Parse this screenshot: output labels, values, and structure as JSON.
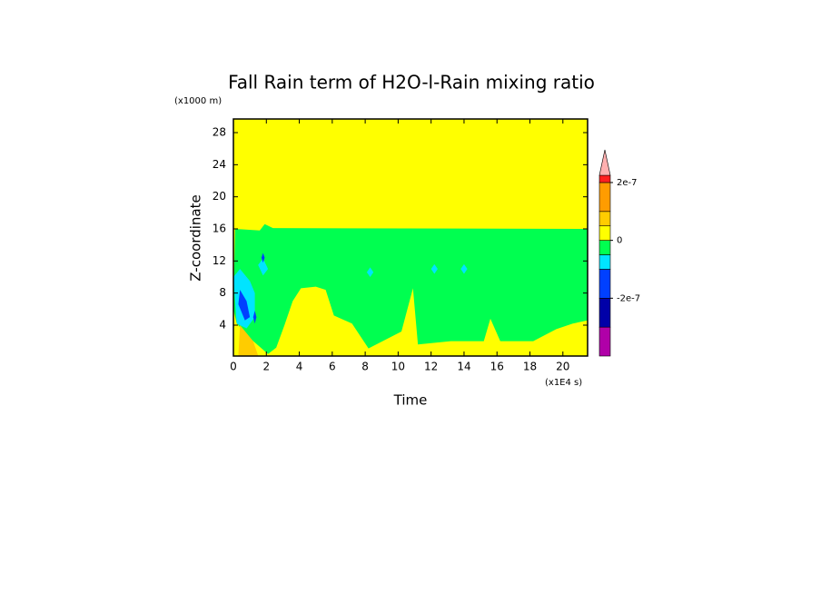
{
  "chart_data": {
    "type": "contour",
    "title": "Fall Rain term of H2O-l-Rain mixing ratio",
    "x_label": "Time",
    "y_label": "Z-coordinate",
    "x_unit": "(x1E4 s)",
    "y_unit": "(x1000 m)",
    "xlim": [
      0,
      21.5
    ],
    "ylim": [
      0.15,
      29.7
    ],
    "xticks": [
      0,
      2,
      4,
      6,
      8,
      10,
      12,
      14,
      16,
      18,
      20
    ],
    "yticks": [
      4,
      8,
      12,
      16,
      20,
      24,
      28
    ],
    "background_level": 5,
    "colorbar": {
      "levels": [
        -4e-07,
        -3e-07,
        -2e-07,
        -1e-07,
        -5e-08,
        0,
        5e-08,
        1e-07,
        2e-07,
        2.25e-07
      ],
      "colors": [
        "#b000a8",
        "#0000a8",
        "#0040ff",
        "#00e4ff",
        "#00ff50",
        "#ffff00",
        "#ffcc00",
        "#ff9c00",
        "#ff2020"
      ],
      "extend_color": "#ffb0b0",
      "ticks": [
        {
          "value": 2e-07,
          "label": "2e-7"
        },
        {
          "value": 0,
          "label": "0"
        },
        {
          "value": -2e-07,
          "label": "-2e-7"
        }
      ]
    },
    "regions": [
      {
        "level": 4,
        "x": [
          0.1,
          1.6,
          1.9,
          2.4,
          21.5,
          21.5,
          20.6,
          19.6,
          18.2,
          16.2,
          15.6,
          15.2,
          13.2,
          11.2,
          10.9,
          10.2,
          8.2,
          7.2,
          6.1,
          5.6,
          5.0,
          4.1,
          3.6,
          3.1,
          2.6,
          2.1,
          1.1,
          0.2,
          0
        ],
        "y": [
          16,
          15.8,
          16.6,
          16.1,
          16,
          4.6,
          4.2,
          3.5,
          2.0,
          2.0,
          4.8,
          2.0,
          2.0,
          1.6,
          8.6,
          3.2,
          1.1,
          4.2,
          5.2,
          8.4,
          8.8,
          8.6,
          7.0,
          4.0,
          1.2,
          0.4,
          2.2,
          4.2,
          6.0
        ]
      },
      {
        "level": 6,
        "x": [
          0.3,
          0.4,
          1.2,
          1.5
        ],
        "y": [
          0.2,
          4.0,
          2.0,
          0.2
        ]
      },
      {
        "level": 3,
        "x": [
          0,
          0.4,
          1.0,
          1.3,
          1.3,
          0.8,
          0.2
        ],
        "y": [
          10.0,
          11.0,
          9.5,
          8.0,
          5.0,
          3.6,
          4.2
        ]
      },
      {
        "level": 3,
        "x": [
          1.5,
          1.8,
          2.1,
          1.8
        ],
        "y": [
          11.5,
          12.3,
          11.0,
          10.2
        ]
      },
      {
        "level": 2,
        "x": [
          0.4,
          0.8,
          1.0,
          0.7,
          0.3
        ],
        "y": [
          8.4,
          7.0,
          5.0,
          4.6,
          6.6
        ]
      },
      {
        "level": 2,
        "x": [
          1.3,
          1.4,
          1.3,
          1.2
        ],
        "y": [
          5.8,
          5.0,
          4.2,
          5.0
        ]
      },
      {
        "level": 2,
        "x": [
          1.7,
          1.8,
          1.9,
          1.8
        ],
        "y": [
          12.4,
          13.0,
          12.4,
          11.8
        ]
      },
      {
        "level": 3,
        "x": [
          8.1,
          8.3,
          8.5,
          8.3
        ],
        "y": [
          10.6,
          11.2,
          10.6,
          10.0
        ]
      },
      {
        "level": 3,
        "x": [
          12.0,
          12.2,
          12.4,
          12.2
        ],
        "y": [
          11.0,
          11.6,
          11.0,
          10.4
        ]
      },
      {
        "level": 3,
        "x": [
          13.8,
          14.0,
          14.2,
          14.0
        ],
        "y": [
          11.0,
          11.6,
          11.0,
          10.4
        ]
      }
    ]
  }
}
